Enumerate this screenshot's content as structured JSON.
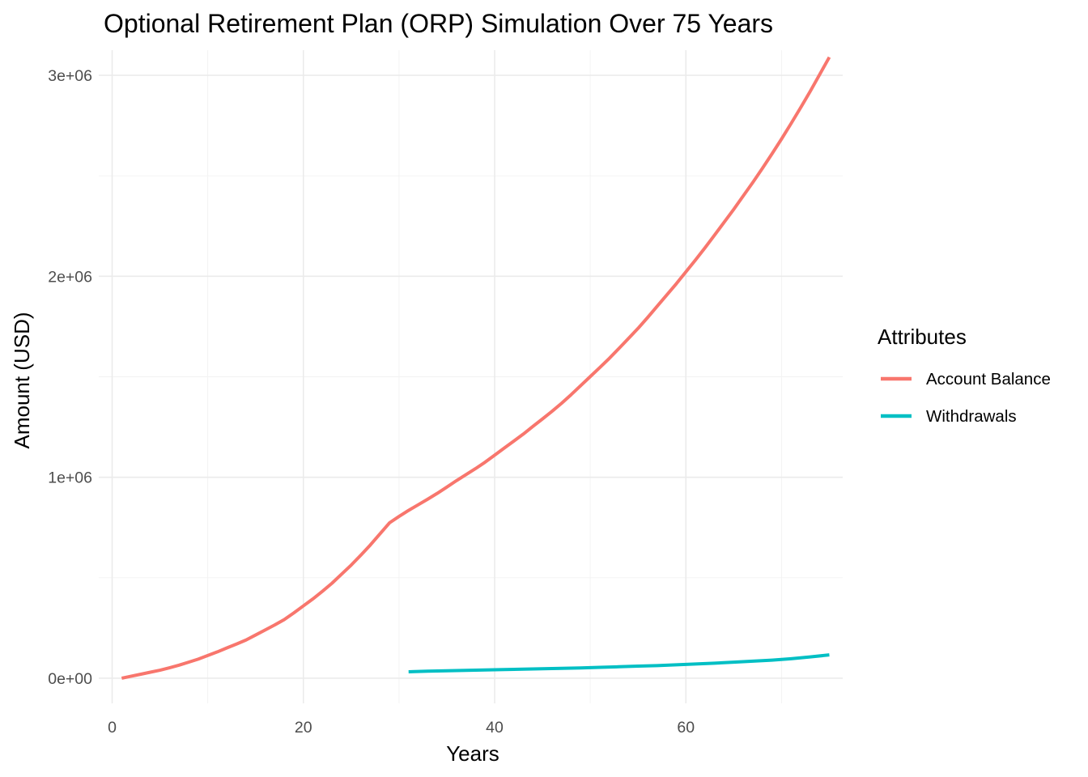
{
  "chart_data": {
    "type": "line",
    "title": "Optional Retirement Plan (ORP) Simulation Over 75 Years",
    "xlabel": "Years",
    "ylabel": "Amount (USD)",
    "xlim": [
      -1.4,
      76.4
    ],
    "ylim": [
      -125000,
      3125000
    ],
    "x_ticks": [
      0,
      20,
      40,
      60
    ],
    "x_tick_labels": [
      "0",
      "20",
      "40",
      "60"
    ],
    "x_minor_ticks": [
      10,
      30,
      50,
      70
    ],
    "y_ticks": [
      0,
      1000000,
      2000000,
      3000000
    ],
    "y_tick_labels": [
      "0e+00",
      "1e+06",
      "2e+06",
      "3e+06"
    ],
    "y_minor_ticks": [
      500000,
      1500000,
      2500000
    ],
    "grid": true,
    "legend": {
      "title": "Attributes",
      "position": "right"
    },
    "series": [
      {
        "name": "Account Balance",
        "color": "#F8766D",
        "x": [
          1,
          2,
          3,
          4,
          5,
          6,
          7,
          8,
          9,
          10,
          11,
          12,
          13,
          14,
          15,
          16,
          17,
          18,
          19,
          20,
          21,
          22,
          23,
          24,
          25,
          26,
          27,
          28,
          29,
          30,
          31,
          32,
          33,
          34,
          35,
          36,
          37,
          38,
          39,
          40,
          41,
          42,
          43,
          44,
          45,
          46,
          47,
          48,
          49,
          50,
          51,
          52,
          53,
          54,
          55,
          56,
          57,
          58,
          59,
          60,
          61,
          62,
          63,
          64,
          65,
          66,
          67,
          68,
          69,
          70,
          71,
          72,
          73,
          74,
          75
        ],
        "y": [
          0,
          10000,
          20000,
          30000,
          40000,
          52000,
          65000,
          80000,
          95000,
          113000,
          131000,
          151000,
          170000,
          190000,
          215000,
          240000,
          265000,
          292000,
          325000,
          360000,
          395000,
          433000,
          473000,
          518000,
          563000,
          612000,
          663000,
          718000,
          773000,
          805000,
          835000,
          863000,
          891000,
          920000,
          951000,
          983000,
          1013000,
          1043000,
          1075000,
          1110000,
          1145000,
          1180000,
          1215000,
          1253000,
          1290000,
          1328000,
          1368000,
          1411000,
          1456000,
          1501000,
          1546000,
          1592000,
          1641000,
          1691000,
          1741000,
          1795000,
          1851000,
          1907000,
          1963000,
          2022000,
          2081000,
          2142000,
          2205000,
          2269000,
          2333000,
          2400000,
          2467000,
          2537000,
          2609000,
          2683000,
          2760000,
          2839000,
          2920000,
          3005000,
          3090000
        ]
      },
      {
        "name": "Withdrawals",
        "color": "#00BFC4",
        "x": [
          31,
          33,
          35,
          37,
          39,
          41,
          43,
          45,
          47,
          49,
          51,
          53,
          55,
          57,
          59,
          61,
          63,
          65,
          67,
          69,
          71,
          73,
          75
        ],
        "y": [
          32000,
          35000,
          37000,
          39000,
          41000,
          43000,
          45000,
          47000,
          49000,
          51000,
          54000,
          57000,
          60000,
          63000,
          67000,
          71000,
          75000,
          80000,
          85000,
          90000,
          97000,
          106000,
          116000
        ]
      }
    ]
  }
}
